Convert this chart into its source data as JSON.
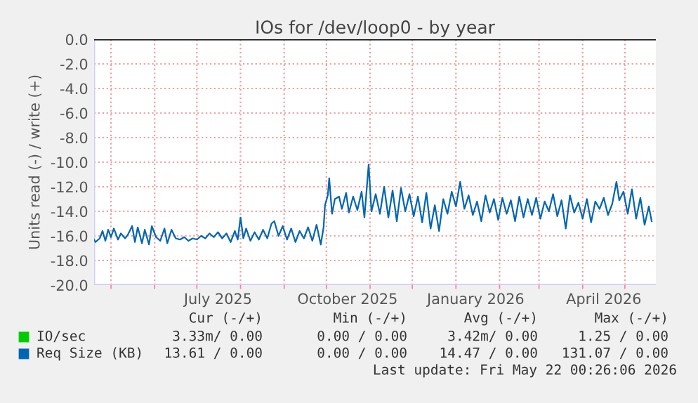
{
  "chart_data": {
    "type": "line",
    "title": "IOs for /dev/loop0 - by year",
    "ylabel": "Units read (-) / write (+)",
    "xlim": [
      "2025-04-19",
      "2026-05-23"
    ],
    "ylim": [
      -20,
      0
    ],
    "yticks": [
      {
        "value": -20,
        "label": "-20.0"
      },
      {
        "value": -18,
        "label": "-18.0"
      },
      {
        "value": -16,
        "label": "-16.0"
      },
      {
        "value": -14,
        "label": "-14.0"
      },
      {
        "value": -12,
        "label": "-12.0"
      },
      {
        "value": -10,
        "label": "-10.0"
      },
      {
        "value": -8,
        "label": "-8.0"
      },
      {
        "value": -6,
        "label": "-6.0"
      },
      {
        "value": -4,
        "label": "-4.0"
      },
      {
        "value": -2,
        "label": "-2.0"
      },
      {
        "value": 0,
        "label": "0.0"
      }
    ],
    "xticks": [
      {
        "value": "2025-05-01",
        "label": null
      },
      {
        "value": "2025-06-01",
        "label": null
      },
      {
        "value": "2025-07-01",
        "label": null
      },
      {
        "value": "2025-07-16",
        "label": "July 2025"
      },
      {
        "value": "2025-08-01",
        "label": null
      },
      {
        "value": "2025-09-01",
        "label": null
      },
      {
        "value": "2025-10-01",
        "label": null
      },
      {
        "value": "2025-10-16",
        "label": "October 2025"
      },
      {
        "value": "2025-11-01",
        "label": null
      },
      {
        "value": "2025-12-01",
        "label": null
      },
      {
        "value": "2026-01-01",
        "label": null
      },
      {
        "value": "2026-01-15",
        "label": "January 2026"
      },
      {
        "value": "2026-02-01",
        "label": null
      },
      {
        "value": "2026-03-01",
        "label": null
      },
      {
        "value": "2026-04-01",
        "label": null
      },
      {
        "value": "2026-04-16",
        "label": "April 2026"
      },
      {
        "value": "2026-05-01",
        "label": null
      }
    ],
    "grid": true,
    "legend": "bottom",
    "ref_lines": [
      {
        "axis": "y",
        "value": 0,
        "color": "#000000"
      }
    ],
    "x": [
      "2025-04-19",
      "2025-04-20",
      "2025-04-23",
      "2025-04-25",
      "2025-04-27",
      "2025-04-29",
      "2025-05-01",
      "2025-05-03",
      "2025-05-06",
      "2025-05-08",
      "2025-05-11",
      "2025-05-13",
      "2025-05-16",
      "2025-05-18",
      "2025-05-20",
      "2025-05-23",
      "2025-05-25",
      "2025-05-28",
      "2025-05-30",
      "2025-06-02",
      "2025-06-05",
      "2025-06-08",
      "2025-06-10",
      "2025-06-13",
      "2025-06-16",
      "2025-06-19",
      "2025-06-22",
      "2025-06-25",
      "2025-06-28",
      "2025-07-01",
      "2025-07-04",
      "2025-07-07",
      "2025-07-10",
      "2025-07-13",
      "2025-07-16",
      "2025-07-19",
      "2025-07-22",
      "2025-07-25",
      "2025-07-28",
      "2025-07-30",
      "2025-08-01",
      "2025-08-03",
      "2025-08-05",
      "2025-08-08",
      "2025-08-11",
      "2025-08-14",
      "2025-08-17",
      "2025-08-20",
      "2025-08-23",
      "2025-08-25",
      "2025-08-28",
      "2025-08-31",
      "2025-09-03",
      "2025-09-06",
      "2025-09-09",
      "2025-09-12",
      "2025-09-15",
      "2025-09-18",
      "2025-09-21",
      "2025-09-24",
      "2025-09-27",
      "2025-09-29",
      "2025-09-30",
      "2025-10-02",
      "2025-10-03",
      "2025-10-05",
      "2025-10-07",
      "2025-10-10",
      "2025-10-12",
      "2025-10-15",
      "2025-10-17",
      "2025-10-20",
      "2025-10-23",
      "2025-10-26",
      "2025-10-28",
      "2025-10-31",
      "2025-11-02",
      "2025-11-05",
      "2025-11-08",
      "2025-11-11",
      "2025-11-14",
      "2025-11-17",
      "2025-11-20",
      "2025-11-23",
      "2025-11-26",
      "2025-11-29",
      "2025-12-02",
      "2025-12-05",
      "2025-12-08",
      "2025-12-11",
      "2025-12-14",
      "2025-12-17",
      "2025-12-20",
      "2025-12-23",
      "2025-12-26",
      "2025-12-29",
      "2026-01-01",
      "2026-01-04",
      "2026-01-07",
      "2026-01-10",
      "2026-01-13",
      "2026-01-16",
      "2026-01-19",
      "2026-01-22",
      "2026-01-25",
      "2026-01-28",
      "2026-01-31",
      "2026-02-03",
      "2026-02-06",
      "2026-02-09",
      "2026-02-12",
      "2026-02-15",
      "2026-02-18",
      "2026-02-21",
      "2026-02-24",
      "2026-02-27",
      "2026-03-02",
      "2026-03-05",
      "2026-03-08",
      "2026-03-11",
      "2026-03-14",
      "2026-03-17",
      "2026-03-20",
      "2026-03-23",
      "2026-03-26",
      "2026-03-29",
      "2026-04-01",
      "2026-04-04",
      "2026-04-07",
      "2026-04-10",
      "2026-04-13",
      "2026-04-16",
      "2026-04-19",
      "2026-04-22",
      "2026-04-25",
      "2026-04-27",
      "2026-04-30",
      "2026-05-03",
      "2026-05-06",
      "2026-05-09",
      "2026-05-12",
      "2026-05-15",
      "2026-05-18",
      "2026-05-20"
    ],
    "series": [
      {
        "name": "IO/sec",
        "color": "#00cc00",
        "values": [
          null,
          null,
          null,
          null,
          null,
          null,
          null,
          null,
          null,
          null,
          null,
          null,
          null,
          null,
          null,
          null,
          null,
          null,
          null,
          null,
          null,
          null,
          null,
          null,
          null,
          null,
          null,
          null,
          null,
          null,
          null,
          null,
          null,
          null,
          null,
          null,
          null,
          null,
          null,
          null,
          null,
          null,
          null,
          null,
          null,
          null,
          null,
          null,
          null,
          null,
          null,
          null,
          null,
          null,
          null,
          null,
          null,
          null,
          null,
          null,
          null,
          null,
          null,
          null,
          null,
          null,
          null,
          null,
          null,
          null,
          null,
          null,
          null,
          null,
          null,
          null,
          null,
          null,
          null,
          null,
          null,
          null,
          null,
          null,
          null,
          null,
          null,
          null,
          null,
          null,
          null,
          null,
          null,
          null,
          null,
          null,
          null,
          null,
          null,
          null,
          null,
          null,
          null,
          null,
          null,
          null,
          null,
          null,
          null,
          null,
          null,
          null,
          null,
          null,
          null,
          null,
          null,
          null,
          null,
          null,
          null,
          null,
          null,
          null,
          null,
          null,
          null,
          null,
          null,
          null,
          null,
          null,
          null,
          null,
          null,
          null,
          null,
          null,
          null,
          null,
          null,
          null,
          null,
          null
        ]
      },
      {
        "name": "Req Size (KB)",
        "color": "#0066b3",
        "values": [
          -16.3,
          -16.5,
          -16.2,
          -15.6,
          -16.4,
          -15.5,
          -16.1,
          -15.4,
          -16.3,
          -15.8,
          -16.2,
          -15.9,
          -15.2,
          -16.5,
          -15.3,
          -16.6,
          -15.5,
          -16.7,
          -15.2,
          -16.1,
          -16.4,
          -15.4,
          -16.6,
          -15.5,
          -16.2,
          -16.3,
          -16.1,
          -16.4,
          -16.2,
          -16.3,
          -16.0,
          -16.2,
          -15.8,
          -16.1,
          -15.7,
          -16.2,
          -15.8,
          -16.5,
          -15.6,
          -16.3,
          -14.5,
          -16.2,
          -15.4,
          -16.4,
          -15.7,
          -16.3,
          -15.5,
          -16.2,
          -15.0,
          -14.8,
          -16.0,
          -15.2,
          -16.3,
          -15.4,
          -16.5,
          -15.6,
          -16.2,
          -15.3,
          -16.4,
          -15.1,
          -16.7,
          -15.3,
          -13.5,
          -12.7,
          -11.3,
          -14.2,
          -13.0,
          -12.8,
          -13.8,
          -12.5,
          -14.1,
          -12.8,
          -13.9,
          -12.4,
          -14.5,
          -10.2,
          -14.0,
          -12.6,
          -14.2,
          -12.0,
          -14.5,
          -12.3,
          -14.8,
          -12.1,
          -14.0,
          -12.6,
          -14.4,
          -12.8,
          -14.9,
          -12.5,
          -15.4,
          -13.5,
          -15.6,
          -13.0,
          -14.2,
          -12.4,
          -13.6,
          -11.6,
          -13.8,
          -12.7,
          -14.3,
          -13.2,
          -14.8,
          -12.7,
          -14.1,
          -13.0,
          -14.7,
          -12.9,
          -14.2,
          -13.1,
          -14.8,
          -12.8,
          -14.5,
          -13.0,
          -14.3,
          -12.9,
          -14.6,
          -13.2,
          -14.0,
          -12.6,
          -14.4,
          -13.1,
          -15.4,
          -12.7,
          -14.1,
          -13.3,
          -14.6,
          -13.0,
          -14.9,
          -13.2,
          -13.8,
          -12.9,
          -14.3,
          -13.4,
          -11.6,
          -13.1,
          -12.4,
          -14.2,
          -12.2,
          -14.6,
          -12.9,
          -15.1,
          -13.6,
          -14.8
        ]
      }
    ],
    "annotations": [
      "Cur (-/+)",
      "Min (-/+)",
      "Avg (-/+)",
      "Max (-/+)",
      "3.33m/ 0.00",
      "0.00 / 0.00",
      "3.42m/ 0.00",
      "1.25 / 0.00",
      "13.61 / 0.00",
      "0.00 / 0.00",
      "14.47 / 0.00",
      "131.07 / 0.00",
      "Last update: Fri May 22 00:26:06 2026"
    ]
  }
}
